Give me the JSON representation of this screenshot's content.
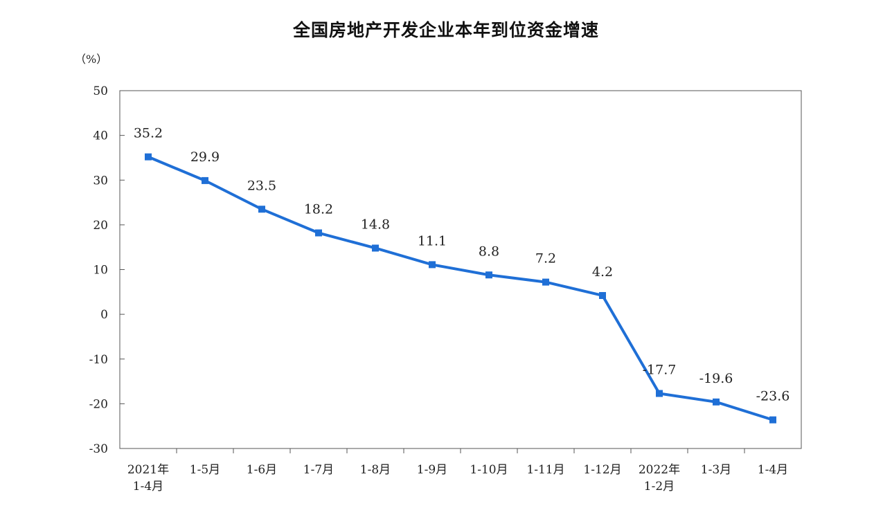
{
  "chart_data": {
    "type": "line",
    "title": "全国房地产开发企业本年到位资金增速",
    "unit": "（%）",
    "ylim": [
      -30,
      50
    ],
    "yticks": [
      50,
      40,
      30,
      20,
      10,
      0,
      -10,
      -20,
      -30
    ],
    "categories": [
      [
        "2021年",
        "1-4月"
      ],
      [
        "1-5月"
      ],
      [
        "1-6月"
      ],
      [
        "1-7月"
      ],
      [
        "1-8月"
      ],
      [
        "1-9月"
      ],
      [
        "1-10月"
      ],
      [
        "1-11月"
      ],
      [
        "1-12月"
      ],
      [
        "2022年",
        "1-2月"
      ],
      [
        "1-3月"
      ],
      [
        "1-4月"
      ]
    ],
    "values": [
      35.2,
      29.9,
      23.5,
      18.2,
      14.8,
      11.1,
      8.8,
      7.2,
      4.2,
      -17.7,
      -19.6,
      -23.6
    ],
    "value_labels": [
      "35.2",
      "29.9",
      "23.5",
      "18.2",
      "14.8",
      "11.1",
      "8.8",
      "7.2",
      "4.2",
      "-17.7",
      "-19.6",
      "-23.6"
    ],
    "grid": false,
    "legend": "none",
    "line_color": "#1f6fd6"
  }
}
